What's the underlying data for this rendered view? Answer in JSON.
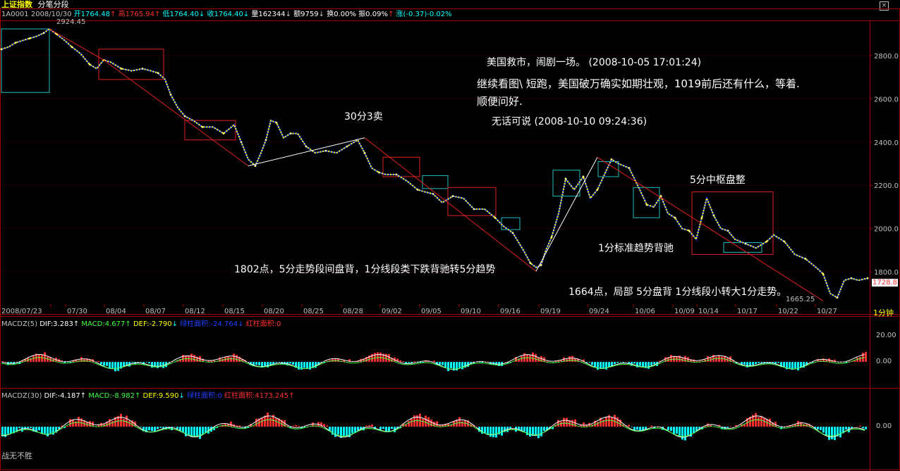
{
  "header": {
    "title": "上证指数",
    "mode": "分笔分段",
    "symbol": "1A0001",
    "date": "2008/10/30",
    "open": "开1764.48",
    "high": "高1765.94",
    "low": "低1764.40",
    "close": "收1764.40",
    "volume": "量162344",
    "amount": "额9759",
    "turnover": "换0.00%",
    "amplitude": "振0.09%",
    "change": "涨(-0.37)-0.02%"
  },
  "colors": {
    "background": "#000000",
    "up": "#ff3030",
    "down": "#00ffff",
    "price_line": "#ffff00",
    "stroke_down": "#2040ff",
    "box_red": "#e02020",
    "box_cyan": "#20c0c0",
    "dif": "#ffffff",
    "dea": "#40ff40"
  },
  "annotations": {
    "line1": "美国救市，闹剧一场。 (2008-10-05 17:01:24)",
    "line2": "继续看图\\ 短跑，美国破万确实如期壮观，1019前后还有什么，等着.",
    "line3": "顺便问好.",
    "line4": "无话可说 (2008-10-10 09:24:36)",
    "sell30": "30分3卖",
    "pivot5": "5分中枢盘整",
    "div1": "1分标准趋势背驰",
    "note1802": "1802点，5分走势段间盘背，1分线段类下跌背驰转5分趋势",
    "note1664": "1664点，局部 5分盘背 1分线段小转大1分走势。",
    "high_label": "2924.45",
    "low_label": "1665.25",
    "last_price": "1728.8",
    "period": "1分钟",
    "footer": "战无不胜"
  },
  "macd5": {
    "label": "MACDZ(5)",
    "dif": "DIF:3.283",
    "macd": "MACD:4.677",
    "dea": "DEF:-2.790",
    "green_area": "绿柱面积:-24.764",
    "red_area": "红柱面积:0",
    "ticks": [
      "20.00",
      "0.00"
    ]
  },
  "macd30": {
    "label": "MACDZ(30)",
    "dif": "DIF:-4.187",
    "macd": "MACD:-8.982",
    "dea": "DEF:9.590",
    "green_area": "绿柱面积:0",
    "red_area": "红柱面积:4173.245",
    "ticks": [
      "0.00"
    ]
  },
  "chart_data": {
    "type": "line",
    "title": "上证指数 分笔分段",
    "x_ticks": [
      "2008/07/23",
      "07/30",
      "08/04",
      "08/07",
      "08/12",
      "08/15",
      "08/20",
      "08/25",
      "08/28",
      "09/02",
      "09/05",
      "09/10",
      "09/16",
      "09/19",
      "09/24",
      "10/06",
      "10/09",
      "10/14",
      "10/17",
      "10/22",
      "10/27"
    ],
    "y_ticks": [
      2800,
      2600,
      2400,
      2200,
      2000,
      1800
    ],
    "ylim": [
      1650,
      2960
    ],
    "series": [
      {
        "name": "上证指数",
        "x": [
          0,
          10,
          20,
          30,
          40,
          50,
          60,
          68,
          78,
          90,
          100,
          112,
          125,
          135,
          145,
          155,
          170,
          185,
          200,
          212,
          222,
          232,
          240,
          250,
          260,
          272,
          285,
          300,
          315,
          330,
          340,
          350,
          360,
          368,
          375,
          382,
          390,
          400,
          410,
          420,
          432,
          445,
          460,
          475,
          490,
          505,
          515,
          525,
          535,
          545,
          560,
          575,
          590,
          600,
          612,
          625,
          640,
          655,
          670,
          685,
          700,
          712,
          725,
          740,
          750,
          758,
          765,
          772,
          780,
          790,
          800,
          812,
          825,
          835,
          845,
          855,
          865,
          875,
          890,
          905,
          915,
          925,
          935,
          945,
          955,
          965,
          975,
          985,
          993,
          1000,
          1010,
          1020,
          1030,
          1040,
          1055,
          1070,
          1085,
          1095,
          1110,
          1125,
          1140,
          1155,
          1165,
          1175,
          1185,
          1195,
          1205,
          1215,
          1228
        ],
        "y": [
          2830,
          2840,
          2860,
          2870,
          2880,
          2890,
          2905,
          2924,
          2900,
          2870,
          2840,
          2810,
          2760,
          2740,
          2780,
          2770,
          2740,
          2730,
          2740,
          2730,
          2720,
          2690,
          2620,
          2560,
          2520,
          2500,
          2470,
          2470,
          2440,
          2480,
          2400,
          2320,
          2290,
          2350,
          2410,
          2500,
          2490,
          2420,
          2440,
          2440,
          2380,
          2350,
          2360,
          2350,
          2380,
          2410,
          2350,
          2280,
          2260,
          2250,
          2250,
          2220,
          2180,
          2170,
          2160,
          2120,
          2150,
          2140,
          2090,
          2090,
          2050,
          2010,
          1980,
          1900,
          1840,
          1820,
          1830,
          1900,
          1960,
          2070,
          2230,
          2180,
          2240,
          2140,
          2180,
          2250,
          2320,
          2300,
          2280,
          2180,
          2110,
          2100,
          2150,
          2070,
          2050,
          2000,
          1990,
          1950,
          2050,
          2140,
          2060,
          2000,
          1990,
          1950,
          1930,
          1910,
          1940,
          1970,
          1940,
          1880,
          1860,
          1820,
          1790,
          1700,
          1680,
          1760,
          1770,
          1760,
          1770
        ]
      }
    ],
    "strokes_x": [
      68,
      145,
      350,
      515,
      758,
      845,
      1165
    ],
    "strokes_y": [
      2924,
      2780,
      2290,
      2420,
      1802,
      2330,
      1665
    ],
    "boxes": [
      {
        "color": "#20c0c0",
        "x": [
          0,
          68
        ],
        "y": [
          2630,
          2924
        ]
      },
      {
        "color": "#e02020",
        "x": [
          138,
          230
        ],
        "y": [
          2690,
          2830
        ]
      },
      {
        "color": "#e02020",
        "x": [
          260,
          332
        ],
        "y": [
          2410,
          2500
        ]
      },
      {
        "color": "#e02020",
        "x": [
          541,
          593
        ],
        "y": [
          2240,
          2330
        ]
      },
      {
        "color": "#20c0c0",
        "x": [
          597,
          633
        ],
        "y": [
          2185,
          2245
        ]
      },
      {
        "color": "#e02020",
        "x": [
          633,
          701
        ],
        "y": [
          2060,
          2190
        ]
      },
      {
        "color": "#20c0c0",
        "x": [
          709,
          735
        ],
        "y": [
          1995,
          2050
        ]
      },
      {
        "color": "#20c0c0",
        "x": [
          782,
          820
        ],
        "y": [
          2150,
          2270
        ]
      },
      {
        "color": "#20c0c0",
        "x": [
          846,
          875
        ],
        "y": [
          2240,
          2310
        ]
      },
      {
        "color": "#20c0c0",
        "x": [
          896,
          933
        ],
        "y": [
          2050,
          2190
        ]
      },
      {
        "color": "#e02020",
        "x": [
          979,
          1094
        ],
        "y": [
          1880,
          2170
        ]
      },
      {
        "color": "#20c0c0",
        "x": [
          1024,
          1078
        ],
        "y": [
          1890,
          1935
        ]
      }
    ]
  }
}
